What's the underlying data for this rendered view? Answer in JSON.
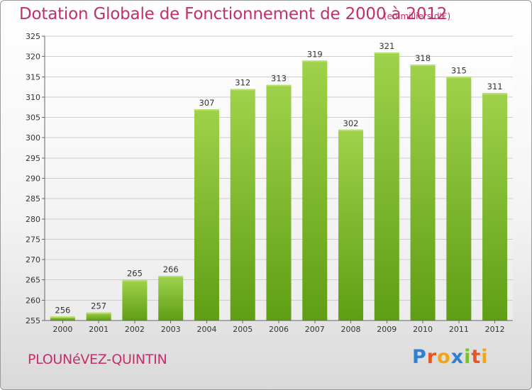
{
  "title": "Dotation Globale de Fonctionnement de 2000 à 2012",
  "subtitle": "(en milliers d'€)",
  "commune": "PLOUNéVEZ-QUINTIN",
  "logo": {
    "letters": [
      "P",
      "r",
      "o",
      "x",
      "i",
      "t",
      "i"
    ],
    "colors": [
      "#2f7fd4",
      "#e6562a",
      "#f0a51c",
      "#2f7fd4",
      "#7bbf2a",
      "#e6562a",
      "#f0a51c"
    ]
  },
  "colors": {
    "bar_top": "#9fd24a",
    "bar_bottom": "#5f9e14",
    "grid": "#cccccc"
  },
  "chart_data": {
    "type": "bar",
    "categories": [
      "2000",
      "2001",
      "2002",
      "2003",
      "2004",
      "2005",
      "2006",
      "2007",
      "2008",
      "2009",
      "2010",
      "2011",
      "2012"
    ],
    "values": [
      256,
      257,
      265,
      266,
      307,
      312,
      313,
      319,
      302,
      321,
      318,
      315,
      311
    ],
    "ylim": [
      255,
      325
    ],
    "yticks": [
      255,
      260,
      265,
      270,
      275,
      280,
      285,
      290,
      295,
      300,
      305,
      310,
      315,
      320,
      325
    ],
    "grid": true,
    "title": "Dotation Globale de Fonctionnement de 2000 à 2012",
    "xlabel": "",
    "ylabel": ""
  }
}
